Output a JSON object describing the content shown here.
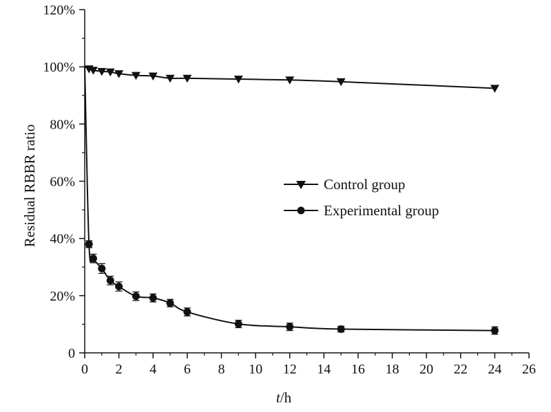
{
  "chart_data": {
    "type": "line",
    "title": "",
    "xlabel_italic": "t",
    "xlabel_unit": "/h",
    "ylabel": "Residual RBBR ratio",
    "xlim": [
      0,
      26
    ],
    "ylim": [
      0,
      120
    ],
    "x_ticks": [
      0,
      2,
      4,
      6,
      8,
      10,
      12,
      14,
      16,
      18,
      20,
      22,
      24,
      26
    ],
    "x_tick_labels": [
      "0",
      "2",
      "4",
      "6",
      "8",
      "10",
      "12",
      "14",
      "16",
      "18",
      "20",
      "22",
      "24",
      "26"
    ],
    "y_ticks": [
      0,
      20,
      40,
      60,
      80,
      100,
      120
    ],
    "y_tick_labels": [
      "0",
      "20%",
      "40%",
      "60%",
      "80%",
      "100%",
      "120%"
    ],
    "legend_position": "center-right",
    "series": [
      {
        "name": "Control group",
        "marker": "triangle-down",
        "x": [
          0,
          0.25,
          0.5,
          1,
          1.5,
          2,
          3,
          4,
          5,
          6,
          9,
          12,
          15,
          24
        ],
        "y": [
          100,
          99.3,
          98.8,
          98.4,
          98.2,
          97.6,
          97,
          96.8,
          96,
          96,
          95.7,
          95.4,
          94.8,
          92.5
        ],
        "err": [
          0,
          0,
          0,
          0,
          0,
          0,
          0,
          0,
          0,
          0,
          0,
          0,
          0,
          0
        ]
      },
      {
        "name": "Experimental group",
        "marker": "circle",
        "x": [
          0,
          0.25,
          0.5,
          1,
          1.5,
          2,
          3,
          4,
          5,
          6,
          9,
          12,
          15,
          24
        ],
        "y": [
          100,
          38,
          33,
          29.5,
          25.3,
          23.2,
          19.8,
          19.2,
          17.4,
          14.3,
          10.1,
          9.1,
          8.3,
          7.8
        ],
        "err": [
          0,
          1.2,
          1.5,
          1.7,
          1.5,
          1.6,
          1.5,
          1.4,
          1.3,
          1.4,
          1.3,
          1.3,
          1.0,
          1.3
        ]
      }
    ]
  }
}
